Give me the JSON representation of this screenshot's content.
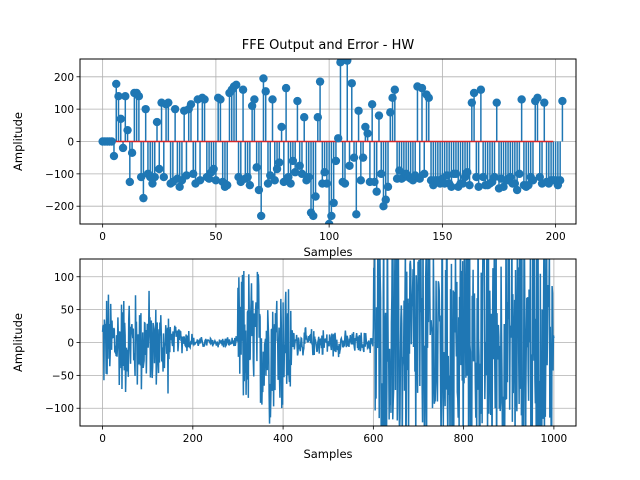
{
  "figure_title": "FFE Output and Error - HW",
  "chart_data": [
    {
      "type": "stem",
      "title": "FFE Output and Error - HW",
      "xlabel": "Samples",
      "ylabel": "Amplitude",
      "xlim": [
        -10,
        209
      ],
      "ylim": [
        -255,
        255
      ],
      "xticks": [
        0,
        50,
        100,
        150,
        200
      ],
      "yticks": [
        -200,
        -100,
        0,
        100,
        200
      ],
      "grid": true,
      "color": "#1f77b4",
      "baseline_color": "#d62728",
      "baseline_range": [
        0,
        199
      ],
      "x_start": 0,
      "values": [
        0,
        0,
        0,
        0,
        0,
        -45,
        178,
        140,
        70,
        -20,
        140,
        35,
        -125,
        -35,
        150,
        150,
        140,
        -110,
        -175,
        100,
        -100,
        -110,
        -130,
        -110,
        60,
        -85,
        120,
        -110,
        115,
        120,
        -130,
        -125,
        100,
        -115,
        -140,
        -120,
        95,
        -105,
        100,
        115,
        -100,
        -130,
        130,
        -120,
        135,
        130,
        -110,
        -115,
        -95,
        -85,
        -120,
        135,
        130,
        -125,
        -140,
        -135,
        150,
        160,
        170,
        175,
        -110,
        -125,
        160,
        -115,
        -110,
        -135,
        110,
        130,
        -80,
        -150,
        -230,
        195,
        155,
        -130,
        -105,
        130,
        -120,
        -85,
        -65,
        45,
        -125,
        165,
        -110,
        -130,
        -60,
        -95,
        125,
        -75,
        -100,
        75,
        -120,
        -110,
        -220,
        -230,
        -170,
        75,
        185,
        -130,
        -95,
        -130,
        -255,
        -230,
        -190,
        -60,
        10,
        245,
        -125,
        -130,
        250,
        -75,
        180,
        -50,
        -225,
        95,
        -120,
        -50,
        45,
        25,
        -125,
        115,
        -125,
        -155,
        80,
        -100,
        -200,
        -180,
        -140,
        90,
        135,
        160,
        -115,
        -90,
        -115,
        -110,
        -100,
        -110,
        -115,
        -120,
        -105,
        170,
        -115,
        165,
        -100,
        145,
        135,
        -120,
        -135,
        -120,
        -120,
        -130,
        -115,
        -130,
        -105,
        -130,
        -140,
        -100,
        -100,
        -140,
        -130,
        -130,
        -110,
        -95,
        -135,
        120,
        150,
        -110,
        -140,
        160,
        -110,
        -135,
        -135,
        -130,
        -125,
        -110,
        120,
        -145,
        -115,
        -140,
        -120,
        -120,
        -110,
        -130,
        -130,
        -150,
        -100,
        130,
        -135,
        -140,
        -135,
        -110,
        -120,
        125,
        135,
        -110,
        -130,
        120,
        -125,
        -130,
        -120,
        -120,
        -120,
        -135,
        -120,
        125
      ]
    },
    {
      "type": "line",
      "xlabel": "Samples",
      "ylabel": "Amplitude",
      "xlim": [
        -50,
        1049
      ],
      "ylim": [
        -127,
        127
      ],
      "xticks": [
        0,
        200,
        400,
        600,
        800,
        1000
      ],
      "yticks": [
        -100,
        -50,
        0,
        50,
        100
      ],
      "grid": true,
      "color": "#1f77b4",
      "segments": [
        {
          "x_range": [
            0,
            110
          ],
          "amplitude": 95,
          "bias": 0
        },
        {
          "x_range": [
            110,
            150
          ],
          "amplitude": 80,
          "bias": -5
        },
        {
          "x_range": [
            150,
            200
          ],
          "amplitude": 25,
          "bias": 5
        },
        {
          "x_range": [
            200,
            300
          ],
          "amplitude": 10,
          "bias": 0
        },
        {
          "x_range": [
            300,
            420
          ],
          "amplitude": 140,
          "bias": 0
        },
        {
          "x_range": [
            420,
            530
          ],
          "amplitude": 25,
          "bias": 0
        },
        {
          "x_range": [
            530,
            600
          ],
          "amplitude": 20,
          "bias": 0
        },
        {
          "x_range": [
            600,
            1000
          ],
          "amplitude": 260,
          "bias": 0
        }
      ]
    }
  ]
}
